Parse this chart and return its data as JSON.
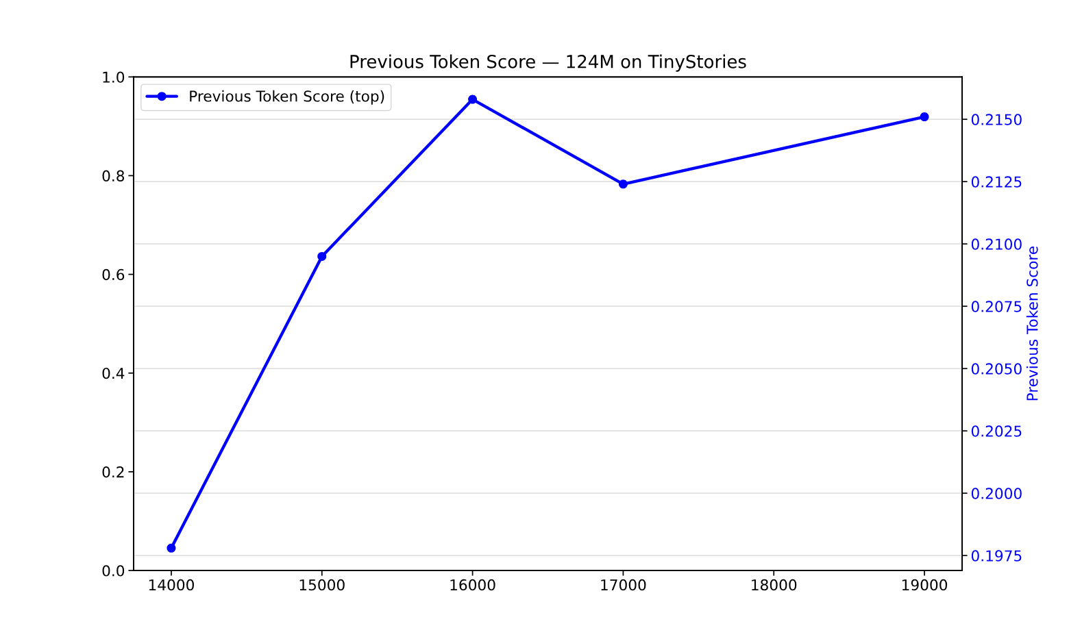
{
  "chart_data": {
    "type": "line",
    "title": "Previous Token Score — 124M on TinyStories",
    "y2label": "Previous Token Score",
    "x": [
      14000,
      15000,
      16000,
      17000,
      19000
    ],
    "series": [
      {
        "name": "Previous Token Score (top)",
        "color": "#0000ff",
        "axis": "y2",
        "values": [
          0.1978,
          0.2095,
          0.2158,
          0.2124,
          0.2151
        ]
      }
    ],
    "xlim": [
      13750,
      19250
    ],
    "xticks": [
      14000,
      15000,
      16000,
      17000,
      18000,
      19000
    ],
    "ylim": [
      0,
      1
    ],
    "yticks": [
      {
        "value": 0,
        "label": "0.0"
      },
      0.2,
      0.4,
      0.6,
      0.8,
      {
        "value": 1,
        "label": "1.0"
      }
    ],
    "y2lim": [
      0.1969,
      0.2167
    ],
    "y2ticks": [
      0.1975,
      {
        "value": 0.2,
        "label": "0.2000"
      },
      0.2025,
      {
        "value": 0.205,
        "label": "0.2050"
      },
      0.2075,
      {
        "value": 0.21,
        "label": "0.2100"
      },
      0.2125,
      {
        "value": 0.215,
        "label": "0.2150"
      }
    ],
    "grid": "y",
    "legend": "top left",
    "marker": "circle",
    "line_style": "solid"
  }
}
